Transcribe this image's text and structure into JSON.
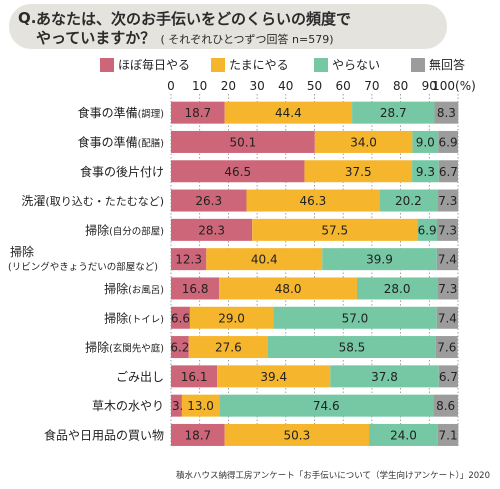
{
  "header": {
    "q_mark": "Q.",
    "line1": "あなたは、次のお手伝いをどのくらいの頻度で",
    "line2": "やっていますか？",
    "line2_sub": "( それぞれひとつずつ回答 n=579)"
  },
  "legend": [
    {
      "label": "ほぼ毎日やる",
      "color": "#cd6679"
    },
    {
      "label": "たまにやる",
      "color": "#f5b62d"
    },
    {
      "label": "やらない",
      "color": "#75c8a3"
    },
    {
      "label": "無回答",
      "color": "#9c9c9c"
    }
  ],
  "source": "積水ハウス納得工房アンケート「お手伝いについて（学生向けアンケート）」2020",
  "chart_data": {
    "type": "bar",
    "orientation": "horizontal",
    "stacked": true,
    "x_ticks": [
      "0",
      "10",
      "20",
      "30",
      "40",
      "50",
      "60",
      "70",
      "80",
      "90",
      "100(%)"
    ],
    "xlim": [
      0,
      100
    ],
    "grid": true,
    "categories": [
      {
        "main": "食事の準備",
        "paren": "(調理)"
      },
      {
        "main": "食事の準備",
        "paren": "(配膳)"
      },
      {
        "main": "食事の後片付け",
        "paren": ""
      },
      {
        "main": "洗濯",
        "paren": "(取り込む・たたむなど)"
      },
      {
        "main": "掃除",
        "paren": "(自分の部屋)"
      },
      {
        "main": "掃除",
        "paren": "(リビングやきょうだいの部屋など)"
      },
      {
        "main": "掃除",
        "paren": "(お風呂)"
      },
      {
        "main": "掃除",
        "paren": "(トイレ)"
      },
      {
        "main": "掃除",
        "paren": "(玄関先や庭)"
      },
      {
        "main": "ごみ出し",
        "paren": ""
      },
      {
        "main": "草木の水やり",
        "paren": ""
      },
      {
        "main": "食品や日用品の買い物",
        "paren": ""
      }
    ],
    "series": [
      {
        "name": "ほぼ毎日やる",
        "values": [
          18.7,
          50.1,
          46.5,
          26.3,
          28.3,
          12.3,
          16.8,
          6.6,
          6.2,
          16.1,
          3.8,
          18.7
        ]
      },
      {
        "name": "たまにやる",
        "values": [
          44.4,
          34.0,
          37.5,
          46.3,
          57.5,
          40.4,
          48.0,
          29.0,
          27.6,
          39.4,
          13.0,
          50.3
        ]
      },
      {
        "name": "やらない",
        "values": [
          28.7,
          9.0,
          9.3,
          20.2,
          6.9,
          39.9,
          28.0,
          57.0,
          58.5,
          37.8,
          74.6,
          24.0
        ]
      },
      {
        "name": "無回答",
        "values": [
          8.3,
          6.9,
          6.7,
          7.3,
          7.3,
          7.4,
          7.3,
          7.4,
          7.6,
          6.7,
          8.6,
          7.1
        ]
      }
    ]
  }
}
